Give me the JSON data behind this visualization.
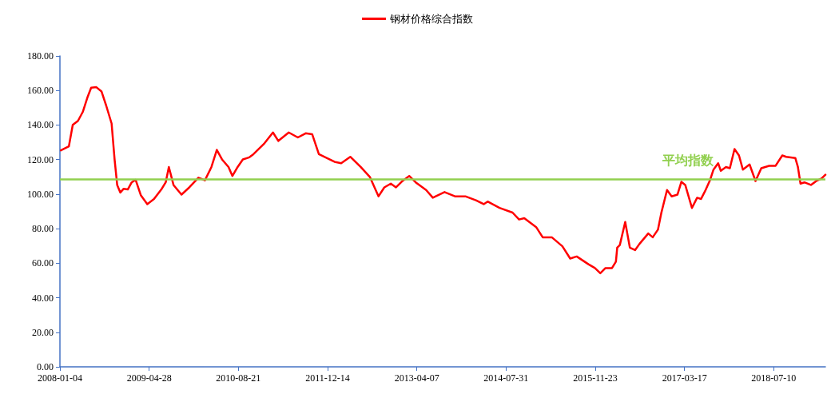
{
  "chart_data": {
    "type": "line",
    "x": [
      "2008-01-09",
      "2008-02-21",
      "2008-03-13",
      "2008-04-10",
      "2008-05-06",
      "2008-05-30",
      "2008-06-20",
      "2008-07-18",
      "2008-08-15",
      "2008-09-09",
      "2008-10-08",
      "2008-10-24",
      "2008-11-07",
      "2008-11-24",
      "2008-12-12",
      "2009-01-03",
      "2009-01-24",
      "2009-02-14",
      "2009-03-14",
      "2009-04-18",
      "2009-05-24",
      "2009-07-05",
      "2009-07-26",
      "2009-08-12",
      "2009-09-06",
      "2009-10-19",
      "2009-11-30",
      "2010-01-18",
      "2010-02-22",
      "2010-03-29",
      "2010-04-27",
      "2010-05-25",
      "2010-06-29",
      "2010-07-20",
      "2010-08-17",
      "2010-09-14",
      "2010-10-19",
      "2010-11-10",
      "2011-01-05",
      "2011-02-23",
      "2011-03-24",
      "2011-05-19",
      "2011-07-07",
      "2011-08-18",
      "2011-09-22",
      "2011-10-28",
      "2012-01-20",
      "2012-02-25",
      "2012-04-14",
      "2012-06-09",
      "2012-07-29",
      "2012-09-13",
      "2012-10-14",
      "2012-11-18",
      "2012-12-16",
      "2013-01-20",
      "2013-02-25",
      "2013-04-01",
      "2013-05-27",
      "2013-07-02",
      "2013-09-03",
      "2013-10-29",
      "2013-12-24",
      "2014-02-19",
      "2014-04-02",
      "2014-04-23",
      "2014-06-26",
      "2014-09-04",
      "2014-10-09",
      "2014-11-06",
      "2015-01-09",
      "2015-02-13",
      "2015-04-03",
      "2015-05-30",
      "2015-07-11",
      "2015-08-15",
      "2015-10-17",
      "2015-11-21",
      "2015-12-20",
      "2016-01-17",
      "2016-02-21",
      "2016-03-13",
      "2016-03-20",
      "2016-04-03",
      "2016-05-02",
      "2016-05-27",
      "2016-06-24",
      "2016-07-18",
      "2016-09-03",
      "2016-09-27",
      "2016-10-25",
      "2016-11-12",
      "2016-12-13",
      "2017-01-07",
      "2017-02-07",
      "2017-02-28",
      "2017-03-21",
      "2017-04-26",
      "2017-05-24",
      "2017-06-14",
      "2017-07-05",
      "2017-08-02",
      "2017-08-20",
      "2017-09-14",
      "2017-09-28",
      "2017-10-26",
      "2017-11-16",
      "2017-12-11",
      "2018-01-04",
      "2018-01-25",
      "2018-03-02",
      "2018-04-03",
      "2018-05-04",
      "2018-06-15",
      "2018-07-20",
      "2018-08-25",
      "2018-09-15",
      "2018-11-03",
      "2018-11-17",
      "2018-12-01",
      "2018-12-22",
      "2019-01-26",
      "2019-02-24",
      "2019-03-24",
      "2019-04-14"
    ],
    "series": [
      {
        "name": "钢材价格综合指数",
        "color": "#ff0000",
        "values": [
          125.3,
          127.6,
          140.1,
          142.4,
          147.6,
          155.7,
          161.6,
          161.9,
          159.4,
          151.2,
          140.9,
          120.1,
          105.3,
          100.9,
          103.1,
          102.7,
          106.8,
          108.3,
          99.4,
          94.2,
          97.2,
          103.1,
          106.8,
          115.7,
          105.3,
          99.7,
          103.9,
          109.5,
          108,
          115.7,
          125.6,
          120.1,
          115.7,
          110.5,
          115.7,
          120.1,
          121.3,
          123.1,
          129,
          135.7,
          130.8,
          135.7,
          132.8,
          135.2,
          134.7,
          123.1,
          118.7,
          117.9,
          121.6,
          115.7,
          109.8,
          98.7,
          103.9,
          106.1,
          103.9,
          107.6,
          110.5,
          106.8,
          102.4,
          97.9,
          101.2,
          98.7,
          98.7,
          96.4,
          94.2,
          95.7,
          92,
          89.3,
          85.3,
          86.1,
          80.9,
          75,
          75,
          69.8,
          62.7,
          63.9,
          59.4,
          57.2,
          54.2,
          57.2,
          57.2,
          60.9,
          69,
          70.5,
          83.9,
          69,
          67.6,
          71.2,
          77.2,
          75,
          79.4,
          89,
          102.4,
          98.7,
          99.7,
          107.1,
          105.3,
          92,
          97.9,
          97.2,
          101.6,
          108.3,
          114.2,
          117.9,
          113.5,
          115.7,
          115,
          126.1,
          122.4,
          114.2,
          117.2,
          107.6,
          115,
          116.4,
          116.4,
          122.4,
          121.6,
          120.9,
          115.7,
          106.1,
          106.8,
          105.3,
          107.6,
          109,
          111.2
        ]
      }
    ],
    "xlim": [
      "2008-01-04",
      "2019-04-14"
    ],
    "xticks": [
      "2008-01-04",
      "2009-04-28",
      "2010-08-21",
      "2011-12-14",
      "2013-04-07",
      "2014-07-31",
      "2015-11-23",
      "2017-03-17",
      "2018-07-10"
    ],
    "ylim": [
      0,
      180
    ],
    "yticks": [
      {
        "value": 0,
        "label": "0.00"
      },
      {
        "value": 20,
        "label": "20.00"
      },
      {
        "value": 40,
        "label": "40.00"
      },
      {
        "value": 60,
        "label": "60.00"
      },
      {
        "value": 80,
        "label": "80.00"
      },
      {
        "value": 100,
        "label": "100.00"
      },
      {
        "value": 120,
        "label": "120.00"
      },
      {
        "value": 140,
        "label": "140.00"
      },
      {
        "value": 160,
        "label": "160.00"
      },
      {
        "value": 180,
        "label": "180.00"
      }
    ],
    "ref_lines": [
      {
        "axis": "y",
        "value": 108.6,
        "label": "平均指数",
        "color": "#92d050"
      }
    ],
    "grid": false,
    "legend": "top",
    "marker": "none",
    "line_style": "solid"
  }
}
